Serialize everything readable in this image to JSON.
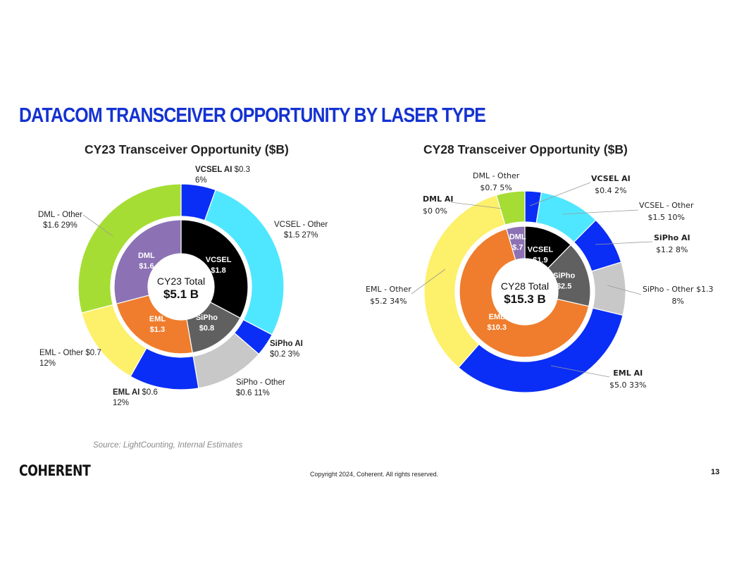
{
  "page": {
    "title": "DATACOM TRANSCEIVER OPPORTUNITY BY LASER TYPE",
    "source": "Source: LightCounting, Internal Estimates",
    "copyright": "Copyright 2024, Coherent. All rights reserved.",
    "page_number": "13",
    "logo_text": "COHERENT"
  },
  "colors": {
    "title": "#1432d2",
    "VCSEL": "#000000",
    "VCSEL AI": "#0a2ef5",
    "VCSEL - Other": "#4fe7ff",
    "SiPho": "#606060",
    "SiPho AI": "#0a2ef5",
    "SiPho - Other": "#c8c8c8",
    "EML": "#ef7d2d",
    "EML AI": "#0a2ef5",
    "EML - Other": "#fdf06a",
    "DML": "#8c72b4",
    "DML AI": "#8c72b4",
    "DML - Other": "#a6dd34"
  },
  "chart_data": [
    {
      "type": "donut",
      "title": "CY23 Transceiver Opportunity ($B)",
      "center_label": "CY23 Total",
      "center_value": "$5.1 B",
      "inner_ring": [
        {
          "name": "VCSEL",
          "value": 1.8,
          "label": "VCSEL",
          "value_label": "$1.8"
        },
        {
          "name": "SiPho",
          "value": 0.8,
          "label": "SiPho",
          "value_label": "$0.8"
        },
        {
          "name": "EML",
          "value": 1.3,
          "label": "EML",
          "value_label": "$1.3"
        },
        {
          "name": "DML",
          "value": 1.6,
          "label": "DML",
          "value_label": "$1.6"
        }
      ],
      "outer_ring": [
        {
          "name": "VCSEL AI",
          "value": 0.3,
          "percent": "6%",
          "label_bold": "VCSEL AI",
          "label_rest": " $0.3",
          "label_line2": "6%"
        },
        {
          "name": "VCSEL - Other",
          "value": 1.5,
          "percent": "27%",
          "label_bold": "",
          "label_rest": "VCSEL - Other",
          "label_line2": "$1.5   27%"
        },
        {
          "name": "SiPho AI",
          "value": 0.2,
          "percent": "3%",
          "label_bold": "SiPho AI",
          "label_rest": "",
          "label_line2": "$0.2   3%"
        },
        {
          "name": "SiPho - Other",
          "value": 0.6,
          "percent": "11%",
          "label_bold": "",
          "label_rest": "SiPho - Other",
          "label_line2": "$0.6   11%"
        },
        {
          "name": "EML AI",
          "value": 0.6,
          "percent": "12%",
          "label_bold": "EML AI",
          "label_rest": " $0.6",
          "label_line2": "12%"
        },
        {
          "name": "EML - Other",
          "value": 0.7,
          "percent": "12%",
          "label_bold": "",
          "label_rest": "EML - Other $0.7",
          "label_line2": "12%"
        },
        {
          "name": "DML - Other",
          "value": 1.6,
          "percent": "29%",
          "label_bold": "",
          "label_rest": "DML - Other",
          "label_line2": "$1.6   29%"
        }
      ]
    },
    {
      "type": "donut",
      "title": "CY28 Transceiver Opportunity ($B)",
      "center_label": "CY28 Total",
      "center_value": "$15.3 B",
      "inner_ring": [
        {
          "name": "VCSEL",
          "value": 1.9,
          "label": "VCSEL",
          "value_label": "$1.9"
        },
        {
          "name": "SiPho",
          "value": 2.5,
          "label": "SiPho",
          "value_label": "$2.5"
        },
        {
          "name": "EML",
          "value": 10.3,
          "label": "EML",
          "value_label": "$10.3"
        },
        {
          "name": "DML",
          "value": 0.7,
          "label": "DML",
          "value_label": "$.7"
        }
      ],
      "outer_ring": [
        {
          "name": "VCSEL AI",
          "value": 0.4,
          "percent": "2%",
          "label_bold": "VCSEL AI",
          "label_rest": "",
          "label_line2": "$0.4   2%"
        },
        {
          "name": "VCSEL - Other",
          "value": 1.5,
          "percent": "10%",
          "label_bold": "",
          "label_rest": "VCSEL - Other",
          "label_line2": "$1.5   10%"
        },
        {
          "name": "SiPho AI",
          "value": 1.2,
          "percent": "8%",
          "label_bold": "SiPho AI",
          "label_rest": "",
          "label_line2": "$1.2   8%"
        },
        {
          "name": "SiPho - Other",
          "value": 1.3,
          "percent": "8%",
          "label_bold": "",
          "label_rest": "SiPho - Other $1.3",
          "label_line2": "8%"
        },
        {
          "name": "EML AI",
          "value": 5.0,
          "percent": "33%",
          "label_bold": "EML AI",
          "label_rest": "",
          "label_line2": "$5.0  33%"
        },
        {
          "name": "EML - Other",
          "value": 5.2,
          "percent": "34%",
          "label_bold": "",
          "label_rest": "EML - Other",
          "label_line2": "$5.2  34%"
        },
        {
          "name": "DML AI",
          "value": 0.0,
          "percent": "0%",
          "label_bold": "DML AI",
          "label_rest": "",
          "label_line2": "$0  0%"
        },
        {
          "name": "DML - Other",
          "value": 0.7,
          "percent": "5%",
          "label_bold": "",
          "label_rest": "DML - Other",
          "label_line2": "$0.7  5%"
        }
      ]
    }
  ]
}
